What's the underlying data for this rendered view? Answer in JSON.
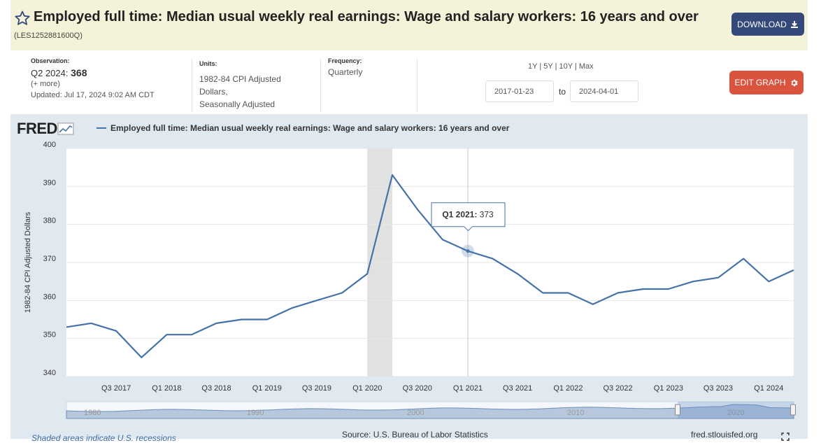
{
  "header": {
    "title": "Employed full time: Median usual weekly real earnings: Wage and salary workers: 16 years and over",
    "series_id": "(LES1252881600Q)",
    "download_label": "DOWNLOAD",
    "icons": {
      "favorite": "star-outline-icon",
      "download": "download-icon"
    }
  },
  "meta": {
    "observation_label": "Observation:",
    "observation_period": "Q2 2024:",
    "observation_value": "368",
    "more_label": "(+ more)",
    "updated": "Updated: Jul 17, 2024 9:02 AM CDT",
    "units_label": "Units:",
    "units_lines": [
      "1982-84 CPI Adjusted",
      "Dollars,",
      "Seasonally Adjusted"
    ],
    "frequency_label": "Frequency:",
    "frequency_value": "Quarterly"
  },
  "controls": {
    "ranges": [
      "1Y",
      "5Y",
      "10Y",
      "Max"
    ],
    "start_date": "2017-01-23",
    "to_label": "to",
    "end_date": "2024-04-01",
    "edit_label": "EDIT GRAPH",
    "icons": {
      "edit": "gear-icon"
    }
  },
  "logo_text": "FRED",
  "chart_data": {
    "type": "line",
    "title": "",
    "xlabel": "",
    "ylabel": "1982-84 CPI Adjusted Dollars",
    "ylim": [
      340,
      400
    ],
    "yticks": [
      340,
      350,
      360,
      370,
      380,
      390,
      400
    ],
    "xticks": [
      "Q3 2017",
      "Q1 2018",
      "Q3 2018",
      "Q1 2019",
      "Q3 2019",
      "Q1 2020",
      "Q3 2020",
      "Q1 2021",
      "Q3 2021",
      "Q1 2022",
      "Q3 2022",
      "Q1 2023",
      "Q3 2023",
      "Q1 2024"
    ],
    "grid": true,
    "legend_position": "top-left",
    "recession": {
      "start": "2020-01-01",
      "end": "2020-04-01"
    },
    "series": [
      {
        "name": "Employed full time: Median usual weekly real earnings: Wage and salary workers: 16 years and over",
        "color": "#4572a7",
        "x": [
          "2017-01-01",
          "2017-04-01",
          "2017-07-01",
          "2017-10-01",
          "2018-01-01",
          "2018-04-01",
          "2018-07-01",
          "2018-10-01",
          "2019-01-01",
          "2019-04-01",
          "2019-07-01",
          "2019-10-01",
          "2020-01-01",
          "2020-04-01",
          "2020-07-01",
          "2020-10-01",
          "2021-01-01",
          "2021-04-01",
          "2021-07-01",
          "2021-10-01",
          "2022-01-01",
          "2022-04-01",
          "2022-07-01",
          "2022-10-01",
          "2023-01-01",
          "2023-04-01",
          "2023-07-01",
          "2023-10-01",
          "2024-01-01",
          "2024-04-01"
        ],
        "values": [
          353,
          354,
          352,
          345,
          351,
          351,
          354,
          355,
          355,
          358,
          360,
          362,
          367,
          393,
          384,
          376,
          373,
          371,
          367,
          362,
          362,
          359,
          362,
          363,
          363,
          365,
          366,
          371,
          365,
          368
        ]
      }
    ],
    "tooltip": {
      "label": "Q1 2021:",
      "value": "373"
    }
  },
  "navigator": {
    "labels": [
      "1980",
      "1990",
      "2000",
      "2010",
      "2020"
    ]
  },
  "footer": {
    "shaded_note": "Shaded areas indicate U.S. recessions",
    "source": "Source: U.S. Bureau of Labor Statistics",
    "url": "fred.stlouisfed.org"
  }
}
